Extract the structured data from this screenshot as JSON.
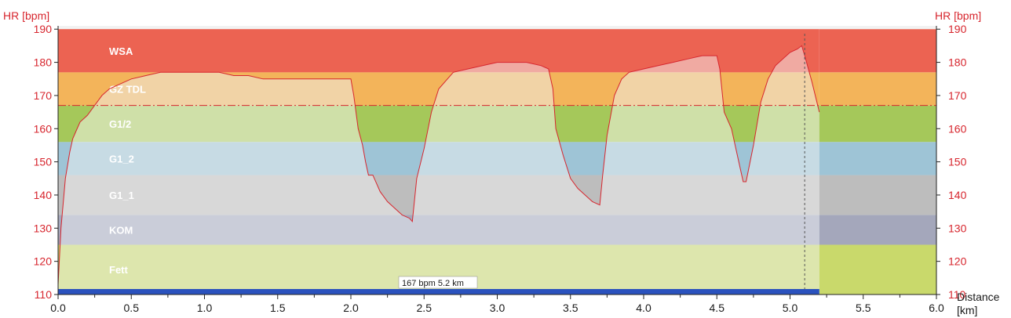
{
  "chart_data": {
    "type": "area",
    "ylabel_left": "HR [bpm]",
    "ylabel_right": "HR [bpm]",
    "xlabel": "Distance",
    "xunit": "[km]",
    "xlim": [
      0,
      6
    ],
    "ylim": [
      110,
      191
    ],
    "x_ticks": [
      "0.0",
      "0.5",
      "1.0",
      "1.5",
      "2.0",
      "2.5",
      "3.0",
      "3.5",
      "4.0",
      "4.5",
      "5.0",
      "5.5",
      "6.0"
    ],
    "y_ticks": [
      "110",
      "120",
      "130",
      "140",
      "150",
      "160",
      "170",
      "180",
      "190"
    ],
    "zones": [
      {
        "name": "Fett",
        "low": 110,
        "high": 125,
        "color": "#c9d96b",
        "light": "#dde6ad"
      },
      {
        "name": "KOM",
        "low": 125,
        "high": 134,
        "color": "#a4a7bb",
        "light": "#cacdd9"
      },
      {
        "name": "G1_1",
        "low": 134,
        "high": 146,
        "color": "#bdbdbd",
        "light": "#d8d8d8"
      },
      {
        "name": "G1_2",
        "low": 146,
        "high": 156,
        "color": "#9ec4d6",
        "light": "#c7dbe4"
      },
      {
        "name": "G1/2",
        "low": 156,
        "high": 167,
        "color": "#a5c85a",
        "light": "#cfe0a8"
      },
      {
        "name": "GZ TDL",
        "low": 167,
        "high": 177,
        "color": "#f3b45a",
        "light": "#f1d3a6"
      },
      {
        "name": "WSA",
        "low": 177,
        "high": 190,
        "color": "#ec6352",
        "light": "#f0aaa2"
      }
    ],
    "threshold_line": {
      "value": 167,
      "style": "dash-dot",
      "color": "#d7262e"
    },
    "cursor": {
      "x": 5.1,
      "label": "167 bpm 5.2 km"
    },
    "end_distance_km": 5.2,
    "series": [
      {
        "x": [
          0.0,
          0.02,
          0.05,
          0.08,
          0.1,
          0.12,
          0.15,
          0.2,
          0.25,
          0.3,
          0.35,
          0.4,
          0.5,
          0.6,
          0.7,
          0.8,
          1.0,
          1.1,
          1.2,
          1.3,
          1.4,
          1.5,
          1.6,
          1.7,
          1.8,
          1.9,
          1.95,
          2.0,
          2.02,
          2.05,
          2.08,
          2.1,
          2.12,
          2.15,
          2.2,
          2.25,
          2.3,
          2.35,
          2.4,
          2.42,
          2.45,
          2.5,
          2.55,
          2.6,
          2.7,
          2.8,
          2.9,
          3.0,
          3.1,
          3.2,
          3.3,
          3.35,
          3.38,
          3.4,
          3.45,
          3.5,
          3.55,
          3.6,
          3.65,
          3.7,
          3.72,
          3.75,
          3.8,
          3.85,
          3.9,
          4.0,
          4.1,
          4.2,
          4.3,
          4.4,
          4.5,
          4.52,
          4.55,
          4.6,
          4.65,
          4.68,
          4.7,
          4.75,
          4.8,
          4.85,
          4.9,
          5.0,
          5.05,
          5.08,
          5.1,
          5.15,
          5.2
        ],
        "y": [
          113,
          130,
          145,
          153,
          157,
          159,
          162,
          164,
          167,
          170,
          172,
          173,
          175,
          176,
          177,
          177,
          177,
          177,
          176,
          176,
          175,
          175,
          175,
          175,
          175,
          175,
          175,
          175,
          170,
          160,
          155,
          150,
          146,
          146,
          141,
          138,
          136,
          134,
          133,
          132,
          145,
          154,
          165,
          172,
          177,
          178,
          179,
          180,
          180,
          180,
          179,
          178,
          172,
          160,
          152,
          145,
          142,
          140,
          138,
          137,
          146,
          158,
          170,
          175,
          177,
          178,
          179,
          180,
          181,
          182,
          182,
          178,
          165,
          160,
          150,
          144,
          144,
          155,
          168,
          175,
          179,
          183,
          184,
          185,
          182,
          174,
          165
        ]
      }
    ]
  }
}
